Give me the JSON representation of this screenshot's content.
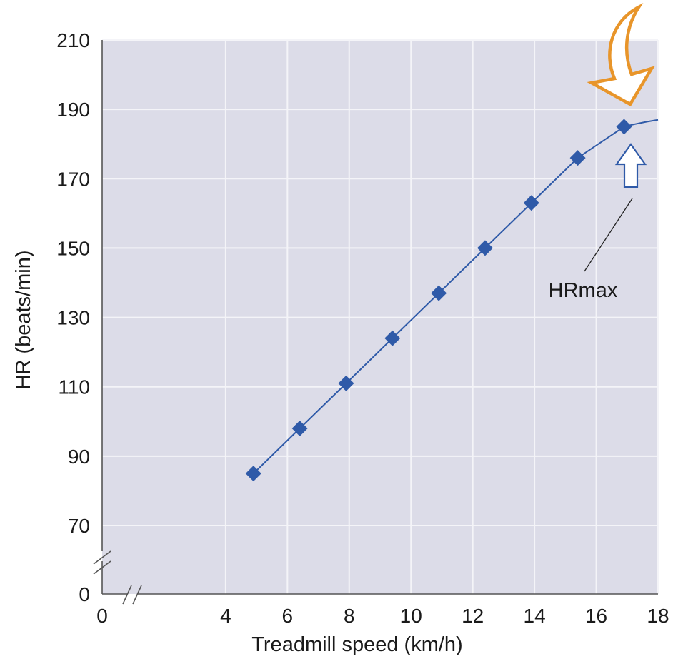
{
  "chart_data": {
    "type": "line",
    "title": "",
    "xlabel": "Treadmill speed (km/h)",
    "ylabel": "HR (beats/min)",
    "xlim": [
      0,
      18
    ],
    "x_ticks": [
      0,
      4,
      6,
      8,
      10,
      12,
      14,
      16,
      18
    ],
    "x_tick_labels": [
      "0",
      "4",
      "6",
      "8",
      "10",
      "12",
      "14",
      "16",
      "18"
    ],
    "y_ticks": [
      0,
      70,
      90,
      110,
      130,
      150,
      170,
      190,
      210
    ],
    "y_tick_labels": [
      "0",
      "70",
      "90",
      "110",
      "130",
      "150",
      "170",
      "190",
      "210"
    ],
    "axis_breaks": {
      "x": "between 0 and 4",
      "y": "between 0 and 70"
    },
    "grid": true,
    "background_color": "#dcdce8",
    "grid_color": "#f4f4f8",
    "series": [
      {
        "color": "#2f5aa8",
        "marker": "diamond",
        "x": [
          4.9,
          6.4,
          7.9,
          9.4,
          10.9,
          12.4,
          13.9,
          15.4,
          16.9
        ],
        "y": [
          85,
          98,
          111,
          124,
          137,
          150,
          163,
          176,
          185
        ]
      }
    ],
    "curve_end": {
      "x": 18,
      "y": 187
    },
    "annotations": [
      {
        "text": "HRmax",
        "points_to": {
          "x": 17.3,
          "y": 183
        }
      }
    ],
    "callout_arrows": [
      {
        "icon": "curved-arrow-icon",
        "color": "#e8952a",
        "direction": "down-left"
      },
      {
        "icon": "up-arrow-icon",
        "color": "#ffffff",
        "outline": "#2f5aa8",
        "direction": "up"
      }
    ]
  }
}
